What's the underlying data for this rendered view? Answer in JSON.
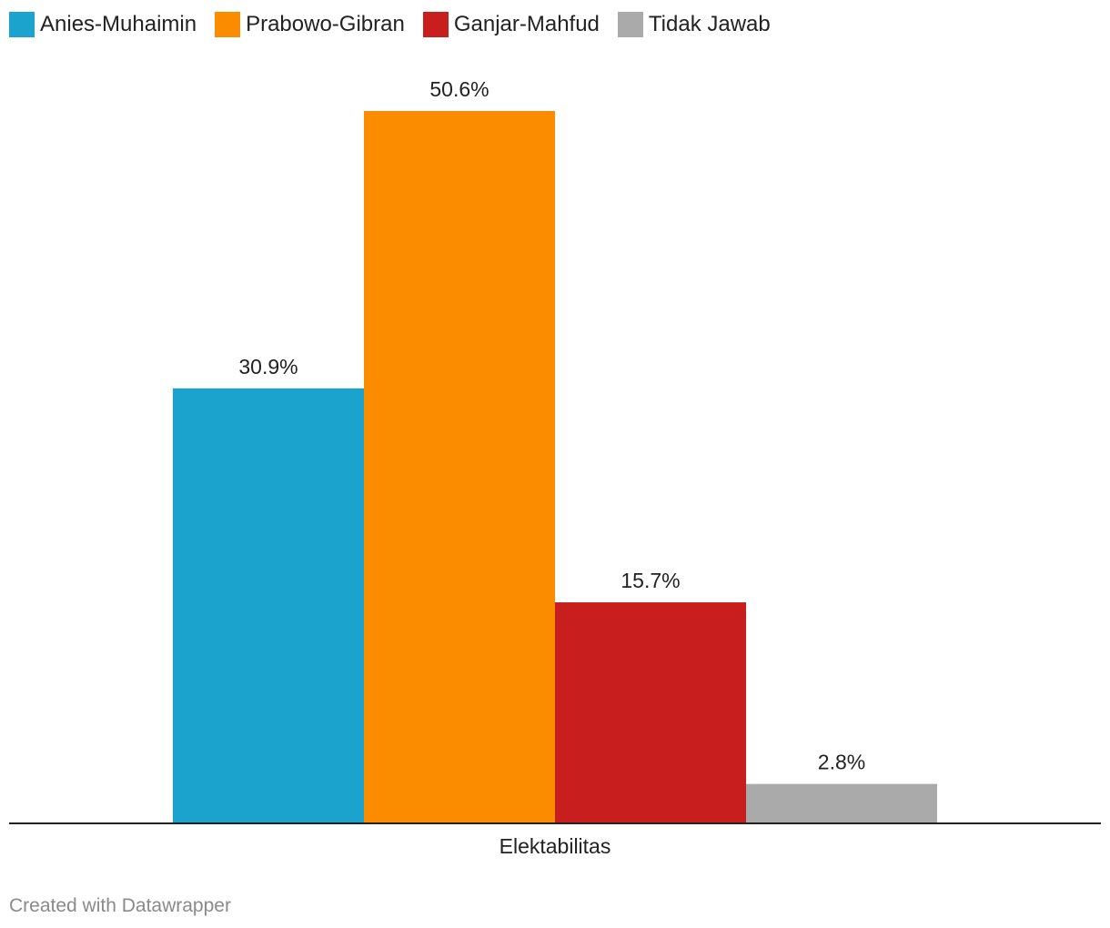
{
  "chart_data": {
    "type": "bar",
    "categories": [
      "Elektabilitas"
    ],
    "series": [
      {
        "name": "Anies-Muhaimin",
        "values": [
          30.9
        ],
        "label": "30.9%",
        "color": "#1ba2cd"
      },
      {
        "name": "Prabowo-Gibran",
        "values": [
          50.6
        ],
        "label": "50.6%",
        "color": "#fb8c00"
      },
      {
        "name": "Ganjar-Mahfud",
        "values": [
          15.7
        ],
        "label": "15.7%",
        "color": "#c81e1e"
      },
      {
        "name": "Tidak Jawab",
        "values": [
          2.8
        ],
        "label": "2.8%",
        "color": "#aaaaaa"
      }
    ],
    "ylim": [
      0,
      55
    ],
    "legend": "top-left",
    "grid": false
  },
  "footer": {
    "credit": "Created with Datawrapper"
  }
}
